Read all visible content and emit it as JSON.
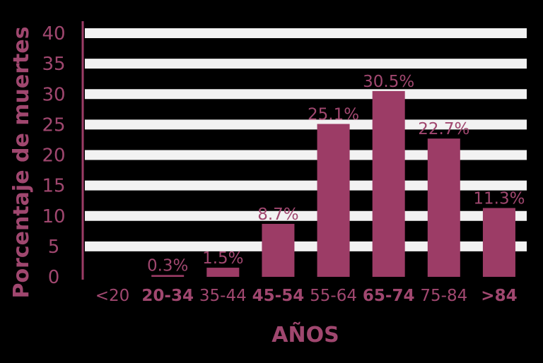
{
  "chart_data": {
    "type": "bar",
    "title": "",
    "xlabel": "AÑOS",
    "ylabel": "Porcentaje de muertes",
    "ylim": [
      0,
      40
    ],
    "yticks": [
      "0",
      "5",
      "10",
      "15",
      "20",
      "25",
      "30",
      "35",
      "40"
    ],
    "categories": [
      "<20",
      "20-34",
      "35-44",
      "45-54",
      "55-64",
      "65-74",
      "75-84",
      ">84"
    ],
    "values": [
      0,
      0.3,
      1.5,
      8.7,
      25.1,
      30.5,
      22.7,
      11.3
    ],
    "data_labels": [
      "",
      "0.3%",
      "1.5%",
      "8.7%",
      "25.1%",
      "30.5%",
      "22.7%",
      "11.3%"
    ],
    "grid": true,
    "colors": {
      "bar": "#9c3c66",
      "text": "#a0476f",
      "grid": "#f2f2f2",
      "background": "#000000"
    }
  }
}
